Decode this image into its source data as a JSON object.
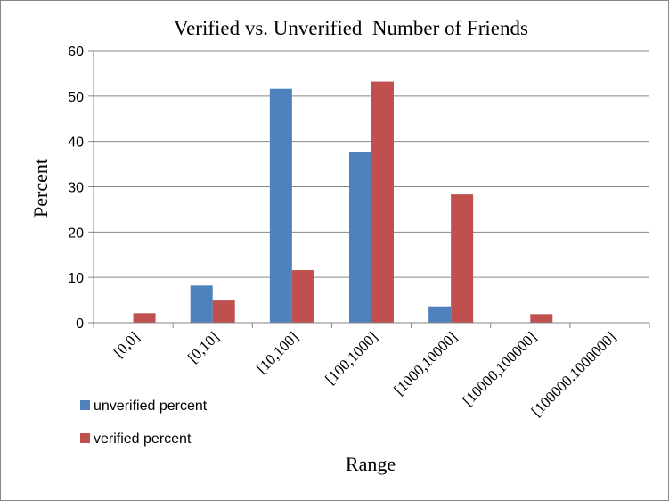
{
  "colors": {
    "unverified": "#4F81BD",
    "verified": "#C0504D",
    "grid": "#868686",
    "axis": "#868686"
  },
  "chart_data": {
    "type": "bar",
    "title": "Verified vs. Unverified  Number of Friends",
    "xlabel": "Range",
    "ylabel": "Percent",
    "categories": [
      "[0,0]",
      "[0,10]",
      "[10,100]",
      "[100,1000]",
      "[1000,10000]",
      "[10000,100000]",
      "[100000,1000000]"
    ],
    "series": [
      {
        "name": "unverified percent",
        "color": "#4F81BD",
        "values": [
          0,
          8.2,
          51.6,
          37.7,
          3.6,
          0,
          0
        ]
      },
      {
        "name": "verified percent",
        "color": "#C0504D",
        "values": [
          2.1,
          4.9,
          11.6,
          53.2,
          28.3,
          1.9,
          0
        ]
      }
    ],
    "ylim": [
      0,
      60
    ],
    "yticks": [
      0,
      10,
      20,
      30,
      40,
      50,
      60
    ],
    "grid": true,
    "legend_position": "bottom-left"
  }
}
